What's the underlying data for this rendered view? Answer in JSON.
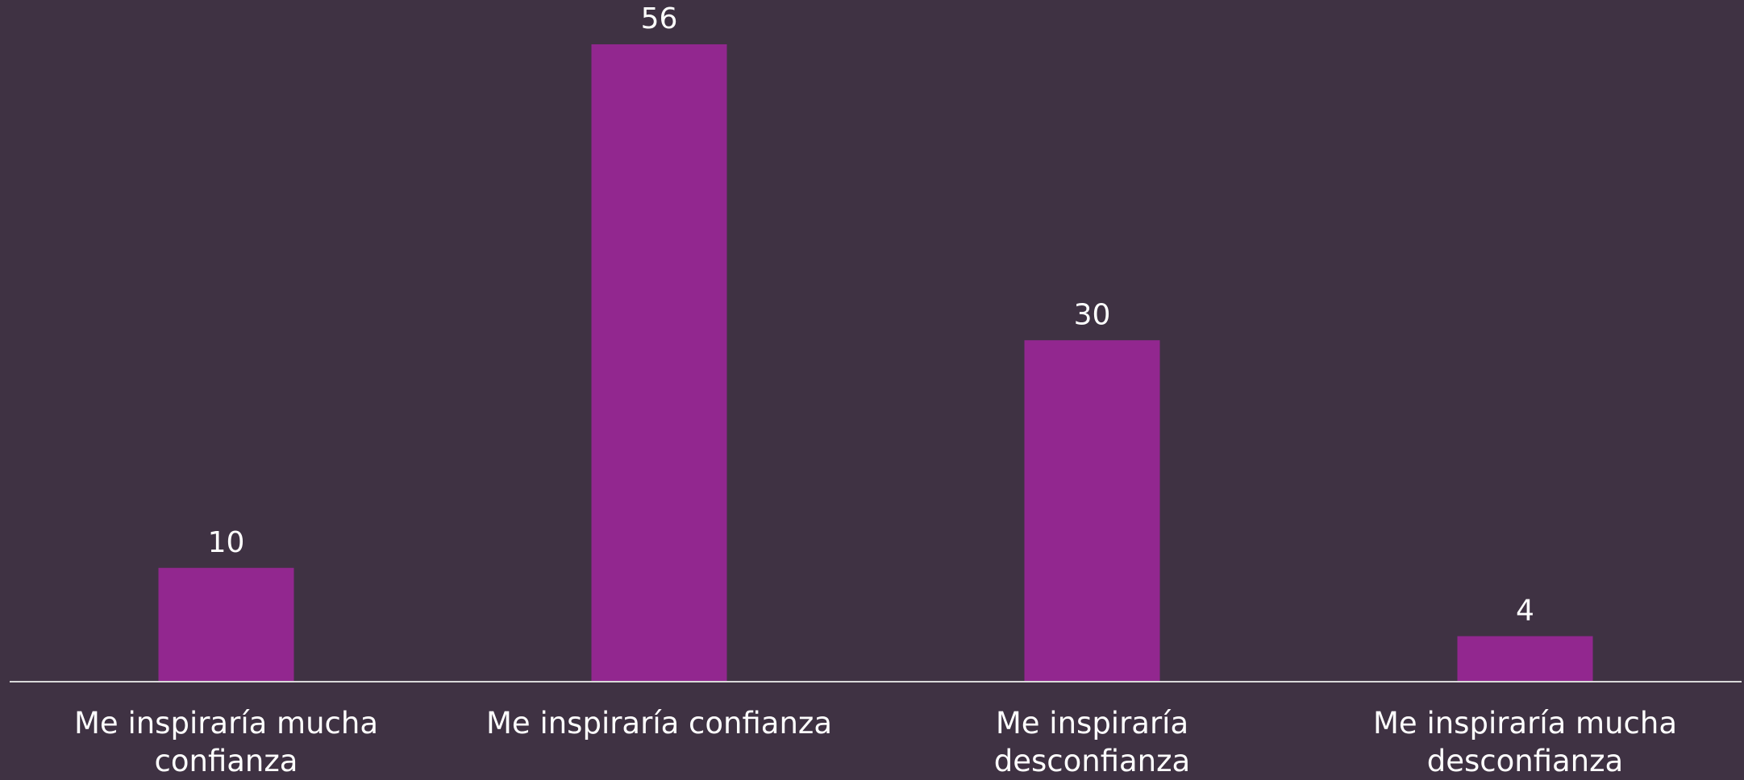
{
  "chart_data": {
    "type": "bar",
    "categories": [
      "Me inspiraría mucha confianza",
      "Me inspiraría confianza",
      "Me inspiraría desconfianza",
      "Me inspiraría mucha desconfianza"
    ],
    "values": [
      10,
      56,
      30,
      4
    ],
    "color": "#92278f"
  }
}
